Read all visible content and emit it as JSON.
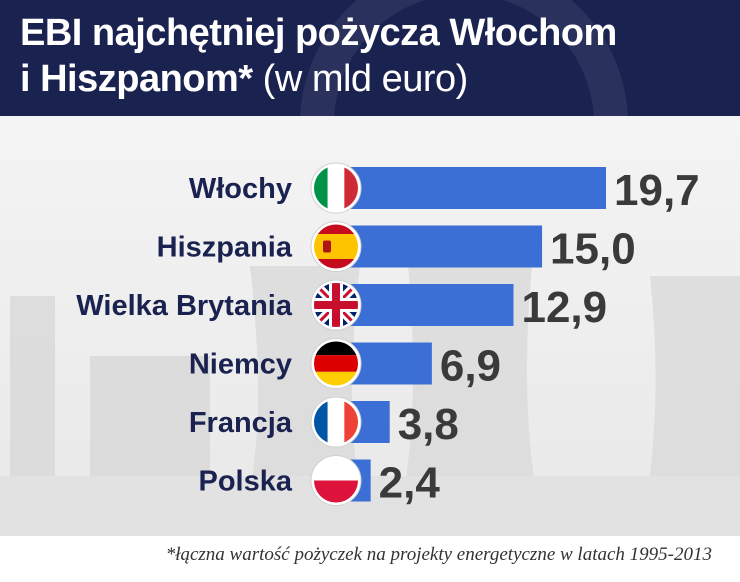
{
  "header": {
    "title_bold_line1": "EBI najchętniej pożycza Włochom",
    "title_bold_line2": "i Hiszpanom*",
    "title_normal": " (w mld euro)"
  },
  "footnote": "*łączna wartość pożyczek na projekty energetyczne w latach 1995-2013",
  "colors": {
    "bar": "#3b6fd6",
    "header_bg": "#1a2250",
    "label": "#1a2250",
    "value": "#3a3a3a"
  },
  "chart_data": {
    "type": "bar",
    "orientation": "horizontal",
    "title": "EBI najchętniej pożycza Włochom i Hiszpanom* (w mld euro)",
    "categories": [
      "Włochy",
      "Hiszpania",
      "Wielka Brytania",
      "Niemcy",
      "Francja",
      "Polska"
    ],
    "values": [
      19.7,
      15.0,
      12.9,
      6.9,
      3.8,
      2.4
    ],
    "value_labels": [
      "19,7",
      "15,0",
      "12,9",
      "6,9",
      "3,8",
      "2,4"
    ],
    "flags": [
      "italy-flag-icon",
      "spain-flag-icon",
      "uk-flag-icon",
      "germany-flag-icon",
      "france-flag-icon",
      "poland-flag-icon"
    ],
    "xlim": [
      0,
      19.7
    ],
    "grid": false,
    "legend": "none"
  }
}
